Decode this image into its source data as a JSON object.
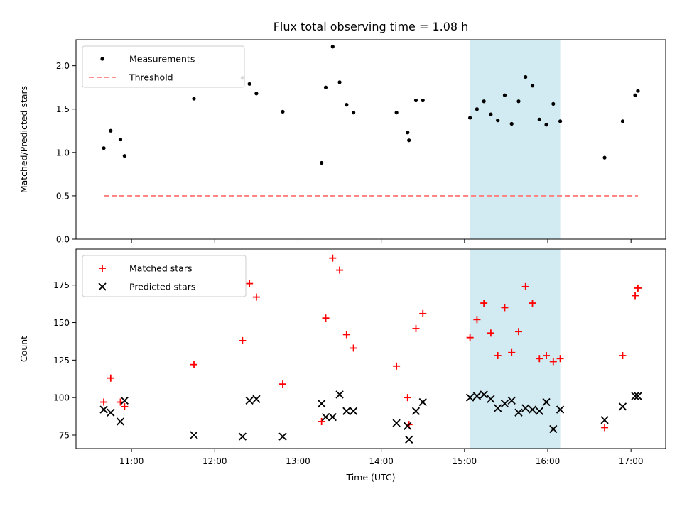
{
  "title": "Flux total observing time = 1.08 h",
  "colors": {
    "measurement": "#000000",
    "threshold": "#ff7f7f",
    "matched": "#ff0000",
    "predicted": "#000000",
    "highlight": "#add8e6"
  },
  "chart_data": [
    {
      "type": "scatter",
      "ylabel": "Matched/Predicted stars",
      "xlim": [
        "10:20",
        "17:25"
      ],
      "ylim": [
        0,
        2.3
      ],
      "yticks": [
        "0.0",
        "0.5",
        "1.0",
        "1.5",
        "2.0"
      ],
      "xticks": [
        "11:00",
        "12:00",
        "13:00",
        "14:00",
        "15:00",
        "16:00",
        "17:00"
      ],
      "highlight_span": [
        "15:04",
        "16:09"
      ],
      "legend": {
        "placement": "upper-left",
        "entries": [
          "Measurements",
          "Threshold"
        ]
      },
      "threshold": {
        "name": "Threshold",
        "y": 0.5,
        "x_range": [
          "10:40",
          "17:05"
        ]
      },
      "series": [
        {
          "name": "Measurements",
          "marker": "dot",
          "points": [
            [
              "10:40",
              1.05
            ],
            [
              "10:45",
              1.25
            ],
            [
              "10:52",
              1.15
            ],
            [
              "10:55",
              0.96
            ],
            [
              "11:45",
              1.62
            ],
            [
              "12:20",
              1.86
            ],
            [
              "12:25",
              1.79
            ],
            [
              "12:30",
              1.68
            ],
            [
              "12:49",
              1.47
            ],
            [
              "13:17",
              0.88
            ],
            [
              "13:20",
              1.75
            ],
            [
              "13:25",
              2.22
            ],
            [
              "13:30",
              1.81
            ],
            [
              "13:35",
              1.55
            ],
            [
              "13:40",
              1.46
            ],
            [
              "14:11",
              1.46
            ],
            [
              "14:19",
              1.23
            ],
            [
              "14:20",
              1.14
            ],
            [
              "14:25",
              1.6
            ],
            [
              "14:30",
              1.6
            ],
            [
              "15:04",
              1.4
            ],
            [
              "15:09",
              1.5
            ],
            [
              "15:14",
              1.59
            ],
            [
              "15:19",
              1.44
            ],
            [
              "15:24",
              1.37
            ],
            [
              "15:29",
              1.66
            ],
            [
              "15:34",
              1.33
            ],
            [
              "15:39",
              1.59
            ],
            [
              "15:44",
              1.87
            ],
            [
              "15:49",
              1.77
            ],
            [
              "15:54",
              1.38
            ],
            [
              "15:59",
              1.32
            ],
            [
              "16:04",
              1.56
            ],
            [
              "16:09",
              1.36
            ],
            [
              "16:41",
              0.94
            ],
            [
              "16:54",
              1.36
            ],
            [
              "17:03",
              1.66
            ],
            [
              "17:05",
              1.71
            ]
          ]
        }
      ]
    },
    {
      "type": "scatter",
      "xlabel": "Time (UTC)",
      "ylabel": "Count",
      "xlim": [
        "10:20",
        "17:25"
      ],
      "ylim": [
        66,
        199
      ],
      "yticks": [
        "75",
        "100",
        "125",
        "150",
        "175"
      ],
      "xticks": [
        "11:00",
        "12:00",
        "13:00",
        "14:00",
        "15:00",
        "16:00",
        "17:00"
      ],
      "highlight_span": [
        "15:04",
        "16:09"
      ],
      "legend": {
        "placement": "upper-left",
        "entries": [
          "Matched stars",
          "Predicted stars"
        ]
      },
      "series": [
        {
          "name": "Matched stars",
          "marker": "plus",
          "points": [
            [
              "10:40",
              97
            ],
            [
              "10:45",
              113
            ],
            [
              "10:52",
              97
            ],
            [
              "10:55",
              94
            ],
            [
              "11:45",
              122
            ],
            [
              "12:20",
              138
            ],
            [
              "12:25",
              176
            ],
            [
              "12:30",
              167
            ],
            [
              "12:49",
              109
            ],
            [
              "13:17",
              84
            ],
            [
              "13:20",
              153
            ],
            [
              "13:25",
              193
            ],
            [
              "13:30",
              185
            ],
            [
              "13:35",
              142
            ],
            [
              "13:40",
              133
            ],
            [
              "14:11",
              121
            ],
            [
              "14:19",
              100
            ],
            [
              "14:20",
              82
            ],
            [
              "14:25",
              146
            ],
            [
              "14:30",
              156
            ],
            [
              "15:04",
              140
            ],
            [
              "15:09",
              152
            ],
            [
              "15:14",
              163
            ],
            [
              "15:19",
              143
            ],
            [
              "15:24",
              128
            ],
            [
              "15:29",
              160
            ],
            [
              "15:34",
              130
            ],
            [
              "15:39",
              144
            ],
            [
              "15:44",
              174
            ],
            [
              "15:49",
              163
            ],
            [
              "15:54",
              126
            ],
            [
              "15:59",
              128
            ],
            [
              "16:04",
              124
            ],
            [
              "16:09",
              126
            ],
            [
              "16:41",
              80
            ],
            [
              "16:54",
              128
            ],
            [
              "17:03",
              168
            ],
            [
              "17:05",
              173
            ]
          ]
        },
        {
          "name": "Predicted stars",
          "marker": "x",
          "points": [
            [
              "10:40",
              92
            ],
            [
              "10:45",
              90
            ],
            [
              "10:52",
              84
            ],
            [
              "10:55",
              98
            ],
            [
              "11:45",
              75
            ],
            [
              "12:20",
              74
            ],
            [
              "12:25",
              98
            ],
            [
              "12:30",
              99
            ],
            [
              "12:49",
              74
            ],
            [
              "13:17",
              96
            ],
            [
              "13:20",
              87
            ],
            [
              "13:25",
              87
            ],
            [
              "13:30",
              102
            ],
            [
              "13:35",
              91
            ],
            [
              "13:40",
              91
            ],
            [
              "14:11",
              83
            ],
            [
              "14:19",
              81
            ],
            [
              "14:20",
              72
            ],
            [
              "14:25",
              91
            ],
            [
              "14:30",
              97
            ],
            [
              "15:04",
              100
            ],
            [
              "15:09",
              101
            ],
            [
              "15:14",
              102
            ],
            [
              "15:19",
              99
            ],
            [
              "15:24",
              93
            ],
            [
              "15:29",
              96
            ],
            [
              "15:34",
              98
            ],
            [
              "15:39",
              90
            ],
            [
              "15:44",
              93
            ],
            [
              "15:49",
              92
            ],
            [
              "15:54",
              91
            ],
            [
              "15:59",
              97
            ],
            [
              "16:04",
              79
            ],
            [
              "16:09",
              92
            ],
            [
              "16:41",
              85
            ],
            [
              "16:54",
              94
            ],
            [
              "17:03",
              101
            ],
            [
              "17:05",
              101
            ]
          ]
        }
      ]
    }
  ]
}
